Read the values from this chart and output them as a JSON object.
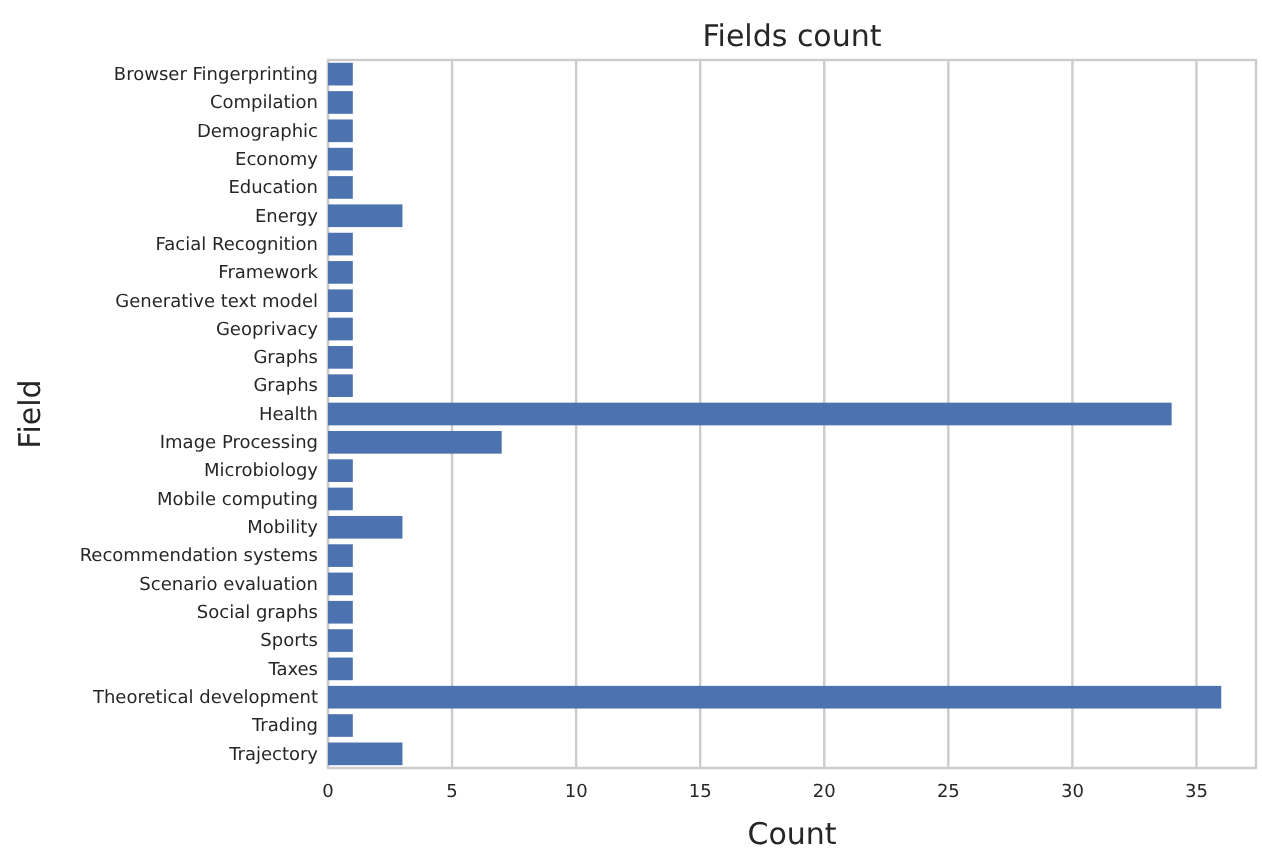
{
  "chart_data": {
    "type": "bar",
    "orientation": "horizontal",
    "title": "Fields count",
    "xlabel": "Count",
    "ylabel": "Field",
    "categories": [
      "Browser Fingerprinting",
      "Compilation",
      "Demographic",
      "Economy",
      "Education",
      "Energy",
      "Facial Recognition",
      "Framework",
      "Generative text model",
      "Geoprivacy",
      "Graphs",
      "Graphs",
      "Health",
      "Image Processing",
      "Microbiology",
      "Mobile computing",
      "Mobility",
      "Recommendation systems",
      "Scenario evaluation",
      "Social graphs",
      "Sports",
      "Taxes",
      "Theoretical development",
      "Trading",
      "Trajectory"
    ],
    "values": [
      1,
      1,
      1,
      1,
      1,
      3,
      1,
      1,
      1,
      1,
      1,
      1,
      34,
      7,
      1,
      1,
      3,
      1,
      1,
      1,
      1,
      1,
      36,
      1,
      3
    ],
    "color": "#4c72b0",
    "xlim": [
      0,
      37.4
    ],
    "xticks": [
      0,
      5,
      10,
      15,
      20,
      25,
      30,
      35
    ],
    "grid": "x"
  }
}
